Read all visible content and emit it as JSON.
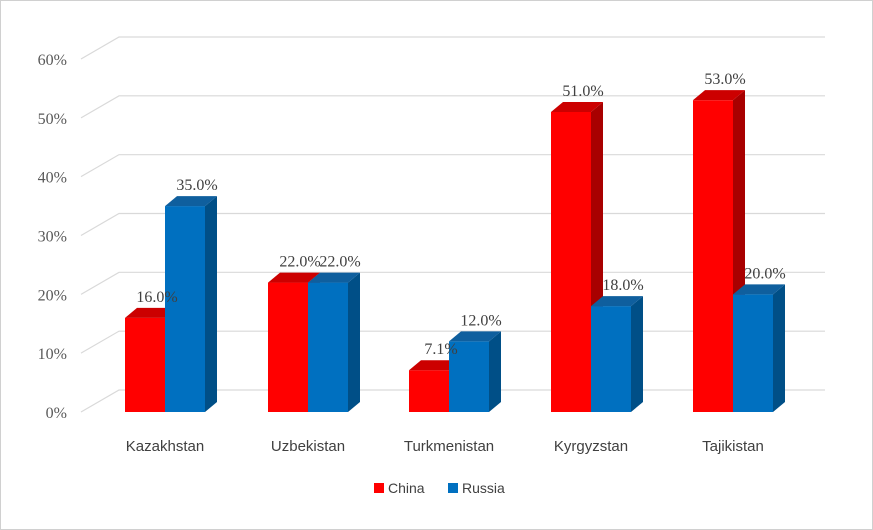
{
  "chart_data": {
    "type": "bar",
    "title": "",
    "xlabel": "",
    "ylabel": "",
    "categories": [
      "Kazakhstan",
      "Uzbekistan",
      "Turkmenistan",
      "Kyrgyzstan",
      "Tajikistan"
    ],
    "series": [
      {
        "name": "China",
        "values": [
          16.0,
          22.0,
          7.1,
          51.0,
          53.0
        ],
        "labels": [
          "16.0%",
          "22.0%",
          "7.1%",
          "51.0%",
          "53.0%"
        ],
        "color": "#ff0000",
        "top_color": "#cc0000",
        "side_color": "#a80000"
      },
      {
        "name": "Russia",
        "values": [
          35.0,
          22.0,
          12.0,
          18.0,
          20.0
        ],
        "labels": [
          "35.0%",
          "22.0%",
          "12.0%",
          "18.0%",
          "20.0%"
        ],
        "color": "#0070c0",
        "top_color": "#0f5f9e",
        "side_color": "#004f87"
      }
    ],
    "y_ticks": [
      0,
      10,
      20,
      30,
      40,
      50,
      60
    ],
    "y_tick_labels": [
      "0%",
      "10%",
      "20%",
      "30%",
      "40%",
      "50%",
      "60%"
    ],
    "ylim": [
      0,
      60
    ],
    "grid": true,
    "style": "3d-clustered-column",
    "legend_position": "bottom"
  }
}
